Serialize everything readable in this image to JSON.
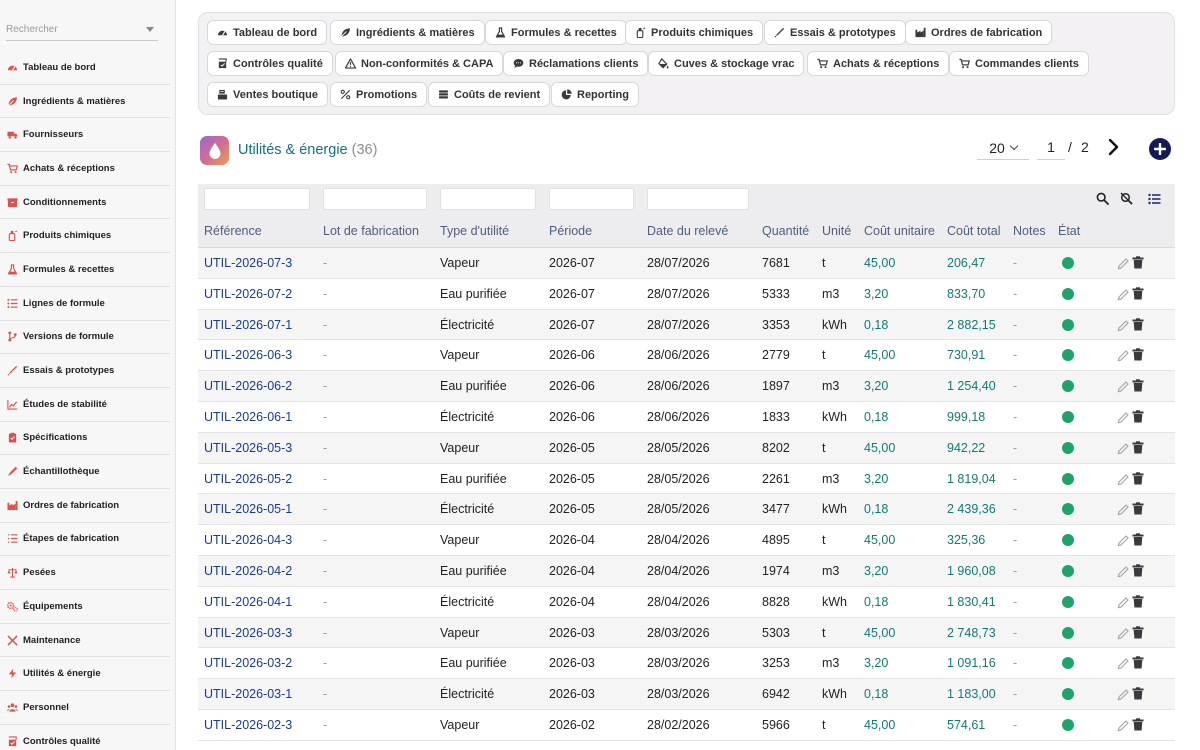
{
  "search": {
    "placeholder": "Rechercher"
  },
  "sidebar": {
    "items": [
      {
        "label": "Tableau de bord",
        "icon": "dashboard-icon"
      },
      {
        "label": "Ingrédients & matières",
        "icon": "leaf-icon"
      },
      {
        "label": "Fournisseurs",
        "icon": "truck-icon"
      },
      {
        "label": "Achats & réceptions",
        "icon": "cart-icon"
      },
      {
        "label": "Conditionnements",
        "icon": "box-icon"
      },
      {
        "label": "Produits chimiques",
        "icon": "chemical-icon"
      },
      {
        "label": "Formules & recettes",
        "icon": "flask-icon"
      },
      {
        "label": "Lignes de formule",
        "icon": "list-icon"
      },
      {
        "label": "Versions de formule",
        "icon": "branch-icon"
      },
      {
        "label": "Essais & prototypes",
        "icon": "dropper-icon"
      },
      {
        "label": "Études de stabilité",
        "icon": "chart-icon"
      },
      {
        "label": "Spécifications",
        "icon": "clipboard-icon"
      },
      {
        "label": "Échantillothèque",
        "icon": "sample-icon"
      },
      {
        "label": "Ordres de fabrication",
        "icon": "factory-icon"
      },
      {
        "label": "Étapes de fabrication",
        "icon": "steps-icon"
      },
      {
        "label": "Pesées",
        "icon": "scale-icon"
      },
      {
        "label": "Équipements",
        "icon": "gears-icon"
      },
      {
        "label": "Maintenance",
        "icon": "tools-icon"
      },
      {
        "label": "Utilités & énergie",
        "icon": "bolt-icon"
      },
      {
        "label": "Personnel",
        "icon": "users-icon"
      },
      {
        "label": "Contrôles qualité",
        "icon": "check-icon"
      }
    ]
  },
  "modules": [
    {
      "label": "Tableau de bord",
      "icon": "dashboard-icon"
    },
    {
      "label": "Ingrédients & matières",
      "icon": "leaf-icon"
    },
    {
      "label": "Formules & recettes",
      "icon": "flask-icon"
    },
    {
      "label": "Produits chimiques",
      "icon": "chemical-icon"
    },
    {
      "label": "Essais & prototypes",
      "icon": "dropper-icon"
    },
    {
      "label": "Ordres de fabrication",
      "icon": "factory-icon"
    },
    {
      "label": "Contrôles qualité",
      "icon": "check-icon"
    },
    {
      "label": "Non-conformités & CAPA",
      "icon": "warning-icon"
    },
    {
      "label": "Réclamations clients",
      "icon": "comment-icon"
    },
    {
      "label": "Cuves & stockage vrac",
      "icon": "fill-icon"
    },
    {
      "label": "Achats & réceptions",
      "icon": "cart-icon"
    },
    {
      "label": "Commandes clients",
      "icon": "cart-icon"
    },
    {
      "label": "Ventes boutique",
      "icon": "register-icon"
    },
    {
      "label": "Promotions",
      "icon": "percent-icon"
    },
    {
      "label": "Coûts de revient",
      "icon": "coins-icon"
    },
    {
      "label": "Reporting",
      "icon": "pie-icon"
    }
  ],
  "page": {
    "title": "Utilités & énergie",
    "count": "(36)",
    "page_size": "20",
    "current_page": "1",
    "separator": "/",
    "total_pages": "2"
  },
  "table": {
    "columns": [
      "Référence",
      "Lot de fabrication",
      "Type d'utilité",
      "Période",
      "Date du relevé",
      "Quantité",
      "Unité",
      "Coût unitaire",
      "Coût total",
      "Notes",
      "État"
    ],
    "rows": [
      {
        "ref": "UTIL-2026-07-3",
        "lot": "-",
        "type": "Vapeur",
        "period": "2026-07",
        "date": "28/07/2026",
        "qty": "7681",
        "unit": "t",
        "unit_cost": "45,00",
        "total": "206,47",
        "notes": "-"
      },
      {
        "ref": "UTIL-2026-07-2",
        "lot": "-",
        "type": "Eau purifiée",
        "period": "2026-07",
        "date": "28/07/2026",
        "qty": "5333",
        "unit": "m3",
        "unit_cost": "3,20",
        "total": "833,70",
        "notes": "-"
      },
      {
        "ref": "UTIL-2026-07-1",
        "lot": "-",
        "type": "Électricité",
        "period": "2026-07",
        "date": "28/07/2026",
        "qty": "3353",
        "unit": "kWh",
        "unit_cost": "0,18",
        "total": "2 882,15",
        "notes": "-"
      },
      {
        "ref": "UTIL-2026-06-3",
        "lot": "-",
        "type": "Vapeur",
        "period": "2026-06",
        "date": "28/06/2026",
        "qty": "2779",
        "unit": "t",
        "unit_cost": "45,00",
        "total": "730,91",
        "notes": "-"
      },
      {
        "ref": "UTIL-2026-06-2",
        "lot": "-",
        "type": "Eau purifiée",
        "period": "2026-06",
        "date": "28/06/2026",
        "qty": "1897",
        "unit": "m3",
        "unit_cost": "3,20",
        "total": "1 254,40",
        "notes": "-"
      },
      {
        "ref": "UTIL-2026-06-1",
        "lot": "-",
        "type": "Électricité",
        "period": "2026-06",
        "date": "28/06/2026",
        "qty": "1833",
        "unit": "kWh",
        "unit_cost": "0,18",
        "total": "999,18",
        "notes": "-"
      },
      {
        "ref": "UTIL-2026-05-3",
        "lot": "-",
        "type": "Vapeur",
        "period": "2026-05",
        "date": "28/05/2026",
        "qty": "8202",
        "unit": "t",
        "unit_cost": "45,00",
        "total": "942,22",
        "notes": "-"
      },
      {
        "ref": "UTIL-2026-05-2",
        "lot": "-",
        "type": "Eau purifiée",
        "period": "2026-05",
        "date": "28/05/2026",
        "qty": "2261",
        "unit": "m3",
        "unit_cost": "3,20",
        "total": "1 819,04",
        "notes": "-"
      },
      {
        "ref": "UTIL-2026-05-1",
        "lot": "-",
        "type": "Électricité",
        "period": "2026-05",
        "date": "28/05/2026",
        "qty": "3477",
        "unit": "kWh",
        "unit_cost": "0,18",
        "total": "2 439,36",
        "notes": "-"
      },
      {
        "ref": "UTIL-2026-04-3",
        "lot": "-",
        "type": "Vapeur",
        "period": "2026-04",
        "date": "28/04/2026",
        "qty": "4895",
        "unit": "t",
        "unit_cost": "45,00",
        "total": "325,36",
        "notes": "-"
      },
      {
        "ref": "UTIL-2026-04-2",
        "lot": "-",
        "type": "Eau purifiée",
        "period": "2026-04",
        "date": "28/04/2026",
        "qty": "1974",
        "unit": "m3",
        "unit_cost": "3,20",
        "total": "1 960,08",
        "notes": "-"
      },
      {
        "ref": "UTIL-2026-04-1",
        "lot": "-",
        "type": "Électricité",
        "period": "2026-04",
        "date": "28/04/2026",
        "qty": "8828",
        "unit": "kWh",
        "unit_cost": "0,18",
        "total": "1 830,41",
        "notes": "-"
      },
      {
        "ref": "UTIL-2026-03-3",
        "lot": "-",
        "type": "Vapeur",
        "period": "2026-03",
        "date": "28/03/2026",
        "qty": "5303",
        "unit": "t",
        "unit_cost": "45,00",
        "total": "2 748,73",
        "notes": "-"
      },
      {
        "ref": "UTIL-2026-03-2",
        "lot": "-",
        "type": "Eau purifiée",
        "period": "2026-03",
        "date": "28/03/2026",
        "qty": "3253",
        "unit": "m3",
        "unit_cost": "3,20",
        "total": "1 091,16",
        "notes": "-"
      },
      {
        "ref": "UTIL-2026-03-1",
        "lot": "-",
        "type": "Électricité",
        "period": "2026-03",
        "date": "28/03/2026",
        "qty": "6942",
        "unit": "kWh",
        "unit_cost": "0,18",
        "total": "1 183,00",
        "notes": "-"
      },
      {
        "ref": "UTIL-2026-02-3",
        "lot": "-",
        "type": "Vapeur",
        "period": "2026-02",
        "date": "28/02/2026",
        "qty": "5966",
        "unit": "t",
        "unit_cost": "45,00",
        "total": "574,61",
        "notes": "-"
      }
    ]
  },
  "colors": {
    "accent_teal": "#16717a",
    "link_blue": "#1a3b8c",
    "status_green": "#20a36b",
    "add_button": "#151a55",
    "sidebar_icon": "#d9534f"
  }
}
